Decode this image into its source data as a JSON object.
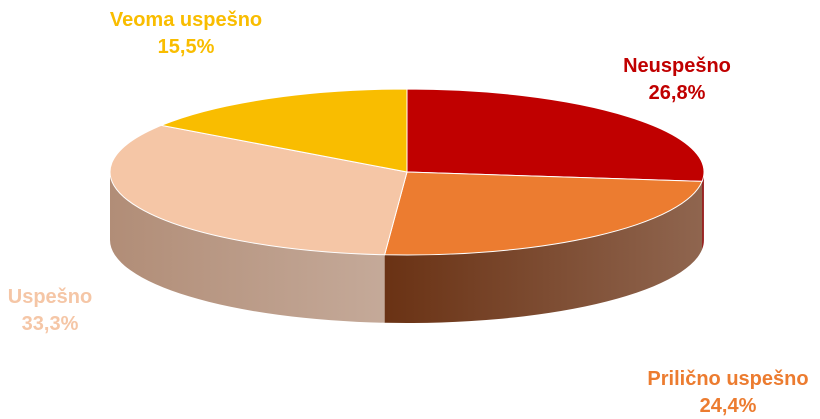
{
  "chart_data": {
    "type": "pie",
    "style": "3d",
    "categories": [
      "Neuspešno",
      "Prilično uspešno",
      "Uspešno",
      "Veoma uspešno"
    ],
    "values": [
      26.8,
      24.4,
      33.3,
      15.5
    ],
    "value_labels": [
      "26,8%",
      "24,4%",
      "33,3%",
      "15,5%"
    ],
    "colors": [
      "#c00000",
      "#ec7c30",
      "#f5c6a6",
      "#f9bd00"
    ],
    "label_colors": [
      "#c00000",
      "#ec7c30",
      "#f5c6a6",
      "#f9bd00"
    ],
    "side_colors": [
      "#8a0000",
      "#6a3214",
      "#b18d77",
      "#b38700"
    ],
    "legend": "none",
    "title": ""
  }
}
